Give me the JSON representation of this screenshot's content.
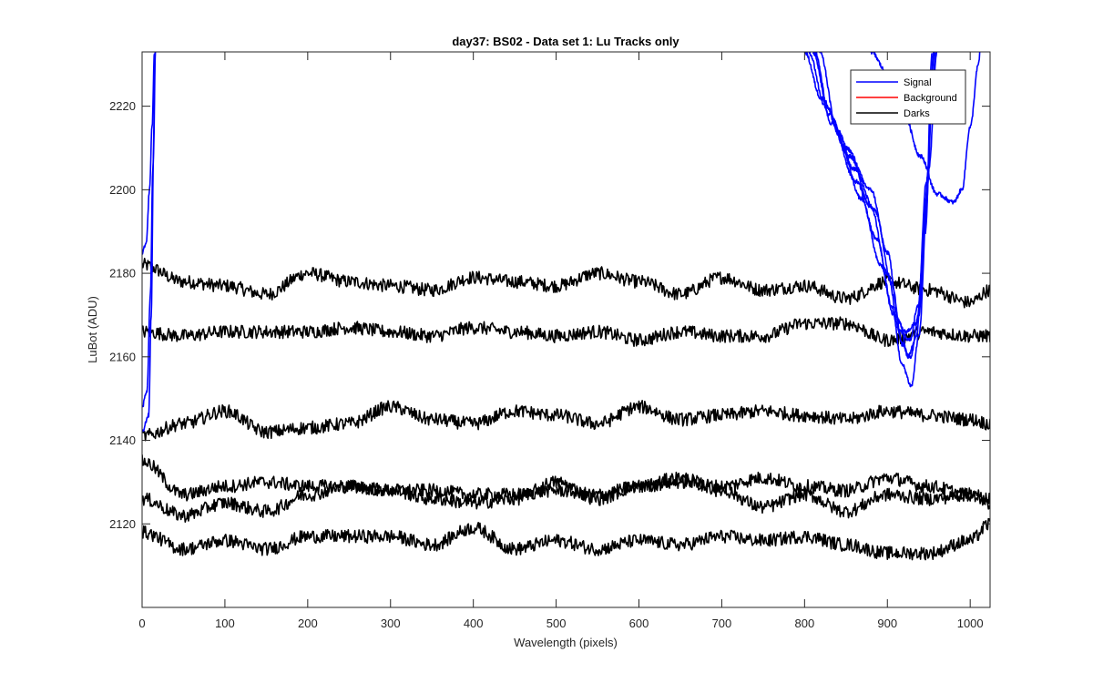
{
  "chart_data": {
    "type": "line",
    "title": "day37: BS02 - Data set 1: Lu Tracks only",
    "xlabel": "Wavelength (pixels)",
    "ylabel": "LuBot (ADU)",
    "xlim": [
      0,
      1024
    ],
    "ylim": [
      2100,
      2233
    ],
    "xticks": [
      0,
      100,
      200,
      300,
      400,
      500,
      600,
      700,
      800,
      900,
      1000
    ],
    "yticks": [
      2120,
      2140,
      2160,
      2180,
      2200,
      2220
    ],
    "grid": false,
    "legend": {
      "placement": "top-right",
      "entries": [
        {
          "name": "Signal",
          "color": "#0000ff"
        },
        {
          "name": "Background",
          "color": "#ff0000"
        },
        {
          "name": "Darks",
          "color": "#000000"
        }
      ]
    },
    "series": [
      {
        "group": "Darks",
        "color": "#000000",
        "points": [
          [
            0,
            2182
          ],
          [
            50,
            2178
          ],
          [
            100,
            2177
          ],
          [
            150,
            2175
          ],
          [
            200,
            2180
          ],
          [
            250,
            2178
          ],
          [
            300,
            2177
          ],
          [
            350,
            2176
          ],
          [
            400,
            2179
          ],
          [
            450,
            2178
          ],
          [
            500,
            2177
          ],
          [
            550,
            2180
          ],
          [
            600,
            2178
          ],
          [
            650,
            2175
          ],
          [
            700,
            2179
          ],
          [
            750,
            2176
          ],
          [
            800,
            2177
          ],
          [
            850,
            2174
          ],
          [
            900,
            2178
          ],
          [
            950,
            2176
          ],
          [
            1000,
            2173
          ],
          [
            1024,
            2176
          ]
        ]
      },
      {
        "group": "Darks",
        "color": "#000000",
        "points": [
          [
            0,
            2166
          ],
          [
            50,
            2165
          ],
          [
            100,
            2166
          ],
          [
            150,
            2166
          ],
          [
            200,
            2166
          ],
          [
            250,
            2167
          ],
          [
            300,
            2166
          ],
          [
            350,
            2165
          ],
          [
            400,
            2167
          ],
          [
            450,
            2166
          ],
          [
            500,
            2165
          ],
          [
            550,
            2166
          ],
          [
            600,
            2164
          ],
          [
            650,
            2166
          ],
          [
            700,
            2165
          ],
          [
            750,
            2165
          ],
          [
            800,
            2168
          ],
          [
            850,
            2168
          ],
          [
            900,
            2164
          ],
          [
            950,
            2166
          ],
          [
            1000,
            2165
          ],
          [
            1024,
            2165
          ]
        ]
      },
      {
        "group": "Darks",
        "color": "#000000",
        "points": [
          [
            0,
            2141
          ],
          [
            50,
            2144
          ],
          [
            100,
            2147
          ],
          [
            150,
            2142
          ],
          [
            200,
            2143
          ],
          [
            250,
            2144
          ],
          [
            300,
            2148
          ],
          [
            350,
            2145
          ],
          [
            400,
            2144
          ],
          [
            450,
            2147
          ],
          [
            500,
            2146
          ],
          [
            550,
            2144
          ],
          [
            600,
            2148
          ],
          [
            650,
            2145
          ],
          [
            700,
            2146
          ],
          [
            750,
            2147
          ],
          [
            800,
            2146
          ],
          [
            850,
            2145
          ],
          [
            900,
            2147
          ],
          [
            950,
            2146
          ],
          [
            1000,
            2145
          ],
          [
            1024,
            2144
          ]
        ]
      },
      {
        "group": "Darks",
        "color": "#000000",
        "points": [
          [
            0,
            2135
          ],
          [
            50,
            2127
          ],
          [
            100,
            2129
          ],
          [
            150,
            2130
          ],
          [
            200,
            2129
          ],
          [
            250,
            2129
          ],
          [
            300,
            2128
          ],
          [
            350,
            2128
          ],
          [
            400,
            2127
          ],
          [
            450,
            2127
          ],
          [
            500,
            2128
          ],
          [
            550,
            2127
          ],
          [
            600,
            2129
          ],
          [
            650,
            2130
          ],
          [
            700,
            2129
          ],
          [
            750,
            2131
          ],
          [
            800,
            2129
          ],
          [
            850,
            2128
          ],
          [
            900,
            2131
          ],
          [
            950,
            2129
          ],
          [
            1000,
            2127
          ],
          [
            1024,
            2126
          ]
        ]
      },
      {
        "group": "Darks",
        "color": "#000000",
        "points": [
          [
            0,
            2126
          ],
          [
            50,
            2122
          ],
          [
            100,
            2125
          ],
          [
            150,
            2123
          ],
          [
            200,
            2127
          ],
          [
            250,
            2129
          ],
          [
            300,
            2128
          ],
          [
            350,
            2126
          ],
          [
            400,
            2125
          ],
          [
            450,
            2126
          ],
          [
            500,
            2130
          ],
          [
            550,
            2126
          ],
          [
            600,
            2129
          ],
          [
            650,
            2131
          ],
          [
            700,
            2128
          ],
          [
            750,
            2124
          ],
          [
            800,
            2127
          ],
          [
            850,
            2123
          ],
          [
            900,
            2127
          ],
          [
            950,
            2126
          ],
          [
            1000,
            2127
          ],
          [
            1024,
            2125
          ]
        ]
      },
      {
        "group": "Darks",
        "color": "#000000",
        "points": [
          [
            0,
            2118
          ],
          [
            50,
            2114
          ],
          [
            100,
            2116
          ],
          [
            150,
            2114
          ],
          [
            200,
            2117
          ],
          [
            250,
            2117
          ],
          [
            300,
            2117
          ],
          [
            350,
            2115
          ],
          [
            400,
            2119
          ],
          [
            450,
            2114
          ],
          [
            500,
            2116
          ],
          [
            550,
            2114
          ],
          [
            600,
            2116
          ],
          [
            650,
            2115
          ],
          [
            700,
            2117
          ],
          [
            750,
            2116
          ],
          [
            800,
            2117
          ],
          [
            850,
            2115
          ],
          [
            900,
            2113
          ],
          [
            950,
            2113
          ],
          [
            1000,
            2116
          ],
          [
            1024,
            2120
          ]
        ]
      },
      {
        "group": "Signal",
        "color": "#0000ff",
        "points": [
          [
            0,
            2185
          ],
          [
            5,
            2187
          ],
          [
            9,
            2200
          ],
          [
            12,
            2215
          ],
          [
            15,
            2233
          ]
        ]
      },
      {
        "group": "Signal",
        "color": "#0000ff",
        "points": [
          [
            0,
            2148
          ],
          [
            6,
            2152
          ],
          [
            10,
            2175
          ],
          [
            13,
            2205
          ],
          [
            16,
            2233
          ]
        ]
      },
      {
        "group": "Signal",
        "color": "#0000ff",
        "points": [
          [
            0,
            2142
          ],
          [
            8,
            2146
          ],
          [
            11,
            2170
          ],
          [
            14,
            2210
          ],
          [
            16,
            2233
          ]
        ]
      },
      {
        "group": "Signal",
        "color": "#0000ff",
        "points": [
          [
            800,
            2233
          ],
          [
            820,
            2222
          ],
          [
            850,
            2210
          ],
          [
            880,
            2200
          ],
          [
            900,
            2185
          ],
          [
            915,
            2168
          ],
          [
            925,
            2160
          ],
          [
            935,
            2165
          ],
          [
            945,
            2190
          ],
          [
            955,
            2225
          ],
          [
            958,
            2233
          ]
        ]
      },
      {
        "group": "Signal",
        "color": "#0000ff",
        "points": [
          [
            810,
            2233
          ],
          [
            830,
            2218
          ],
          [
            860,
            2205
          ],
          [
            885,
            2195
          ],
          [
            905,
            2178
          ],
          [
            918,
            2163
          ],
          [
            928,
            2160
          ],
          [
            938,
            2170
          ],
          [
            948,
            2200
          ],
          [
            956,
            2233
          ]
        ]
      },
      {
        "group": "Signal",
        "color": "#0000ff",
        "points": [
          [
            805,
            2233
          ],
          [
            825,
            2220
          ],
          [
            855,
            2208
          ],
          [
            880,
            2196
          ],
          [
            900,
            2180
          ],
          [
            915,
            2166
          ],
          [
            927,
            2164
          ],
          [
            937,
            2172
          ],
          [
            947,
            2202
          ],
          [
            957,
            2233
          ]
        ]
      },
      {
        "group": "Signal",
        "color": "#0000ff",
        "points": [
          [
            812,
            2233
          ],
          [
            832,
            2216
          ],
          [
            862,
            2202
          ],
          [
            888,
            2188
          ],
          [
            905,
            2172
          ],
          [
            918,
            2158
          ],
          [
            929,
            2153
          ],
          [
            938,
            2165
          ],
          [
            950,
            2205
          ],
          [
            960,
            2233
          ]
        ]
      },
      {
        "group": "Signal",
        "color": "#0000ff",
        "points": [
          [
            818,
            2233
          ],
          [
            840,
            2214
          ],
          [
            868,
            2198
          ],
          [
            892,
            2182
          ],
          [
            908,
            2170
          ],
          [
            922,
            2166
          ],
          [
            935,
            2168
          ],
          [
            946,
            2190
          ],
          [
            954,
            2233
          ]
        ]
      },
      {
        "group": "Signal",
        "color": "#0000ff",
        "points": [
          [
            880,
            2233
          ],
          [
            900,
            2228
          ],
          [
            920,
            2218
          ],
          [
            940,
            2208
          ],
          [
            960,
            2199
          ],
          [
            980,
            2197
          ],
          [
            990,
            2200
          ],
          [
            1000,
            2215
          ],
          [
            1010,
            2230
          ],
          [
            1012,
            2233
          ]
        ]
      }
    ]
  }
}
